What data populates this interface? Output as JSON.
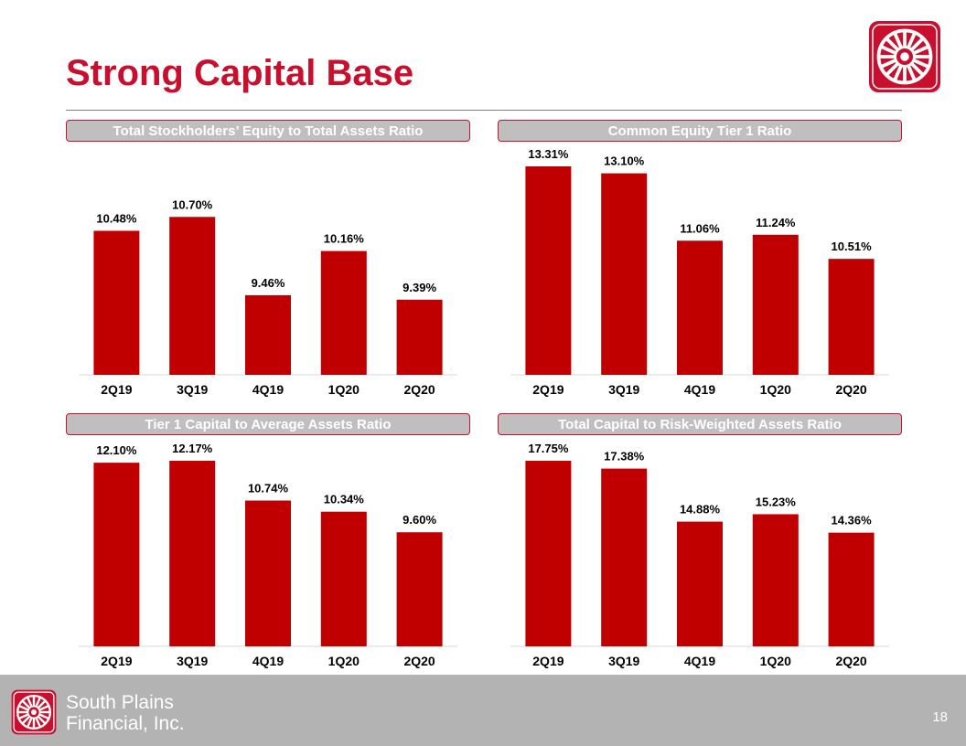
{
  "slide": {
    "title": "Strong Capital Base",
    "company_line1": "South Plains",
    "company_line2": "Financial, Inc.",
    "page_number": "18"
  },
  "colors": {
    "brand_red": "#c8102e",
    "bar": "#c00000",
    "header_bg": "#bfbfbf",
    "footer_bg": "#b3b3b3"
  },
  "icons": {
    "logo": "wagon-wheel-logo-icon"
  },
  "chart_data": [
    {
      "type": "bar",
      "title": "Total Stockholders’ Equity to Total Assets Ratio",
      "categories": [
        "2Q19",
        "3Q19",
        "4Q19",
        "1Q20",
        "2Q20"
      ],
      "values": [
        10.48,
        10.7,
        9.46,
        10.16,
        9.39
      ],
      "labels": [
        "10.48%",
        "10.70%",
        "9.46%",
        "10.16%",
        "9.39%"
      ],
      "ylim": [
        8.2,
        11.5
      ],
      "grid": false,
      "legend": "none"
    },
    {
      "type": "bar",
      "title": "Common Equity Tier 1 Ratio",
      "categories": [
        "2Q19",
        "3Q19",
        "4Q19",
        "1Q20",
        "2Q20"
      ],
      "values": [
        13.31,
        13.1,
        11.06,
        11.24,
        10.51
      ],
      "labels": [
        "13.31%",
        "13.10%",
        "11.06%",
        "11.24%",
        "10.51%"
      ],
      "ylim": [
        7.0,
        13.31
      ],
      "grid": false,
      "legend": "none"
    },
    {
      "type": "bar",
      "title": "Tier 1 Capital to Average Assets Ratio",
      "categories": [
        "2Q19",
        "3Q19",
        "4Q19",
        "1Q20",
        "2Q20"
      ],
      "values": [
        12.1,
        12.17,
        10.74,
        10.34,
        9.6
      ],
      "labels": [
        "12.10%",
        "12.17%",
        "10.74%",
        "10.34%",
        "9.60%"
      ],
      "ylim": [
        5.5,
        12.17
      ],
      "grid": false,
      "legend": "none"
    },
    {
      "type": "bar",
      "title": "Total Capital to Risk-Weighted Assets Ratio",
      "categories": [
        "2Q19",
        "3Q19",
        "4Q19",
        "1Q20",
        "2Q20"
      ],
      "values": [
        17.75,
        17.38,
        14.88,
        15.23,
        14.36
      ],
      "labels": [
        "17.75%",
        "17.38%",
        "14.88%",
        "15.23%",
        "14.36%"
      ],
      "ylim": [
        9.0,
        17.75
      ],
      "grid": false,
      "legend": "none"
    }
  ]
}
